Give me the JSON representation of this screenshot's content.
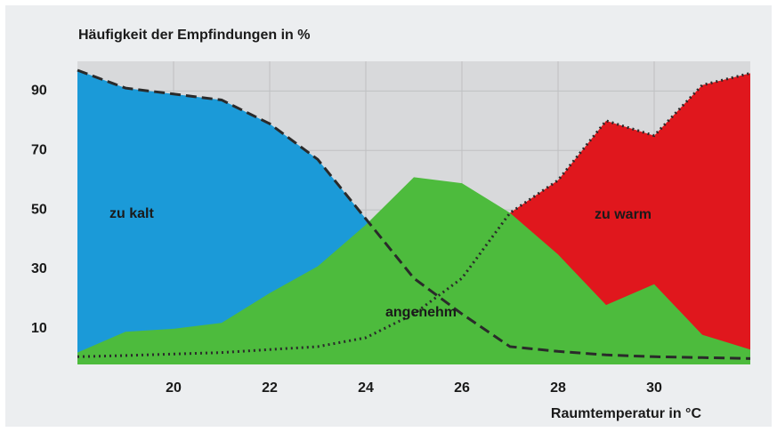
{
  "chart_data": {
    "type": "area",
    "title": "Häufigkeit der Empfindungen in %",
    "x_label": "Raumtemperatur in °C",
    "x": [
      18,
      19,
      20,
      21,
      22,
      23,
      24,
      25,
      26,
      27,
      28,
      29,
      30,
      31,
      32
    ],
    "series": [
      {
        "name": "zu kalt",
        "color": "#1b9ad8",
        "line_style": "dashed",
        "values": [
          97,
          91,
          89,
          87,
          79,
          67,
          47,
          27,
          15,
          4,
          2.4,
          1.2,
          0.6,
          0.3,
          0
        ]
      },
      {
        "name": "zu warm",
        "color": "#e0171d",
        "line_style": "dotted",
        "values": [
          0.6,
          1,
          1.5,
          2,
          3,
          4,
          7,
          15,
          27,
          49,
          60,
          80,
          75,
          92,
          96
        ]
      },
      {
        "name": "angenehm",
        "color": "#4dbb3d",
        "values": [
          2,
          9,
          10,
          12,
          22,
          31,
          45,
          61,
          59,
          49,
          35,
          18,
          25,
          8,
          3
        ]
      }
    ],
    "xlim": [
      18,
      32
    ],
    "ylim": [
      -2,
      100
    ],
    "xticks": [
      20,
      22,
      24,
      26,
      28,
      30
    ],
    "yticks": [
      10,
      30,
      50,
      70,
      90
    ],
    "grid": true
  }
}
